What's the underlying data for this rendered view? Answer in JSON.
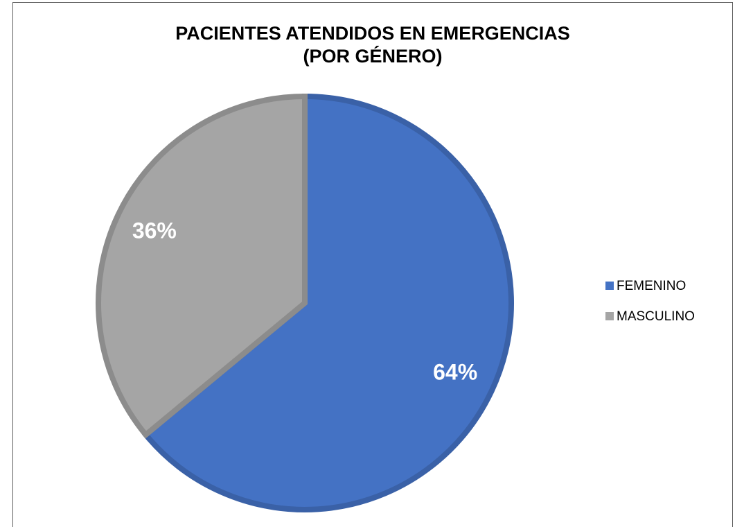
{
  "chart_data": {
    "type": "pie",
    "title": [
      "PACIENTES ATENDIDOS EN EMERGENCIAS",
      "(POR GÉNERO)"
    ],
    "categories": [
      "FEMENINO",
      "MASCULINO"
    ],
    "values": [
      64,
      36
    ],
    "value_labels": [
      "64%",
      "36%"
    ],
    "colors": [
      "#4472c4",
      "#a5a5a5"
    ],
    "legend": "right"
  }
}
